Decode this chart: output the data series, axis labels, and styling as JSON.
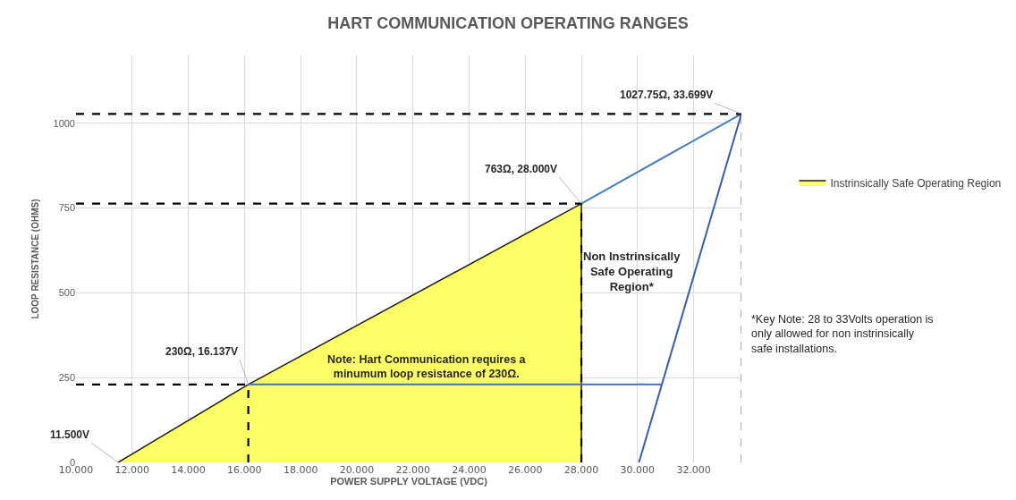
{
  "chart_data": {
    "type": "line",
    "title": "HART COMMUNICATION OPERATING RANGES",
    "xlabel": "POWER SUPPLY VOLTAGE (VDC)",
    "ylabel": "LOOP RESISTANCE (OHMS)",
    "xlim": [
      10,
      33.7
    ],
    "ylim": [
      0,
      1200
    ],
    "xticks": [
      {
        "value": 10,
        "label": "10.000"
      },
      {
        "value": 12,
        "label": "12.000"
      },
      {
        "value": 14,
        "label": "14.000"
      },
      {
        "value": 16,
        "label": "16.000"
      },
      {
        "value": 18,
        "label": "18.000"
      },
      {
        "value": 20,
        "label": "20.000"
      },
      {
        "value": 22,
        "label": "22.000"
      },
      {
        "value": 24,
        "label": "24.000"
      },
      {
        "value": 26,
        "label": "26.000"
      },
      {
        "value": 28,
        "label": "28.000"
      },
      {
        "value": 30,
        "label": "30.000"
      },
      {
        "value": 32,
        "label": "32.000"
      }
    ],
    "yticks": [
      0,
      250,
      500,
      750,
      1000
    ],
    "grid": true,
    "legend": "right",
    "marker": "none",
    "series": [
      {
        "type": "area",
        "name": "Instrinsically Safe Operating Region",
        "color": "#ffff66",
        "x": [
          11.5,
          16.137,
          28,
          28
        ],
        "values": [
          0,
          230,
          763,
          0
        ]
      },
      {
        "color": "#4a7ebb",
        "x": [
          28,
          33.699
        ],
        "values": [
          763,
          1027.75
        ]
      },
      {
        "color": "#3a5da8",
        "x": [
          30.05,
          33.699
        ],
        "values": [
          0,
          1027.75
        ]
      },
      {
        "color": "#4a6fb5",
        "x": [
          16.137,
          30.87
        ],
        "values": [
          230,
          230
        ]
      },
      {
        "line_style": "dashed",
        "color": "#000000",
        "x": [
          10,
          33.699
        ],
        "values": [
          1027.75,
          1027.75
        ]
      },
      {
        "line_style": "dashed",
        "color": "#000000",
        "x": [
          10,
          28
        ],
        "values": [
          763,
          763
        ]
      },
      {
        "line_style": "dashed",
        "color": "#000000",
        "x": [
          10,
          16.137
        ],
        "values": [
          230,
          230
        ]
      },
      {
        "line_style": "dashed",
        "color": "#000000",
        "x": [
          16.137,
          16.137
        ],
        "values": [
          0,
          230
        ]
      },
      {
        "line_style": "dashed",
        "color": "#000000",
        "x": [
          28,
          28
        ],
        "values": [
          0,
          763
        ]
      },
      {
        "line_style": "dashed",
        "color": "#7f7f7f",
        "x": [
          33.699,
          33.699
        ],
        "values": [
          0,
          1027.75
        ]
      }
    ],
    "annotations": [
      {
        "text": "11.500V",
        "x": 11.5,
        "y": 0
      },
      {
        "text": "230Ω, 16.137V",
        "x": 16.137,
        "y": 230
      },
      {
        "text": "763Ω, 28.000V",
        "x": 28,
        "y": 763
      },
      {
        "text": "1027.75Ω, 33.699V",
        "x": 33.699,
        "y": 1027.75
      },
      {
        "text": "Note: Hart Communication requires a minumum loop resistance of 230Ω.",
        "x": 22.5,
        "y": 230
      },
      "Non Instrinsically Safe Operating Region*",
      "*Key Note: 28 to 33Volts operation is only allowed for non instrinsically safe installations."
    ]
  }
}
